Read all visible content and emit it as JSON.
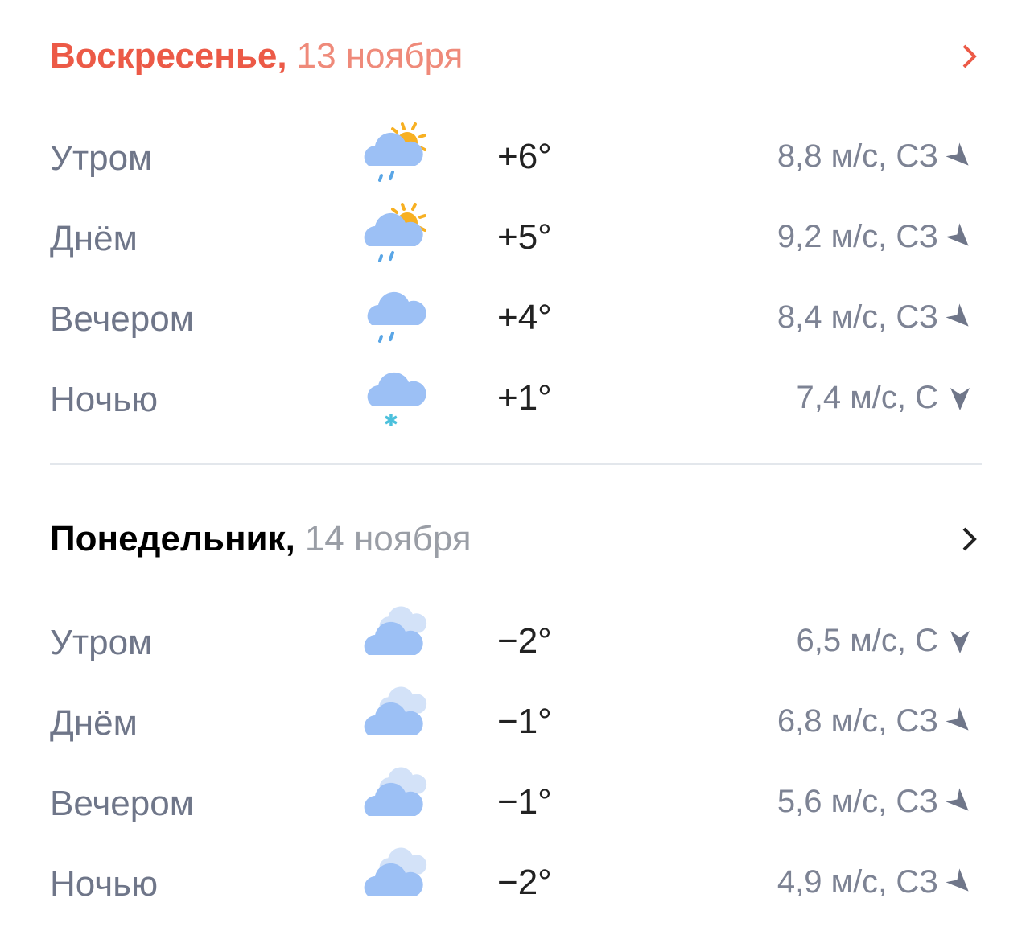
{
  "days": [
    {
      "day": "Воскресенье,",
      "date": "13 ноября",
      "today": true,
      "rows": [
        {
          "label": "Утром",
          "icon": "partly-cloudy-rain-icon",
          "temp": "+6°",
          "wind": "8,8 м/с, СЗ",
          "dir": "nw"
        },
        {
          "label": "Днём",
          "icon": "partly-cloudy-rain-icon",
          "temp": "+5°",
          "wind": "9,2 м/с, СЗ",
          "dir": "nw"
        },
        {
          "label": "Вечером",
          "icon": "cloud-rain-icon",
          "temp": "+4°",
          "wind": "8,4 м/с, СЗ",
          "dir": "nw"
        },
        {
          "label": "Ночью",
          "icon": "cloud-snow-icon",
          "temp": "+1°",
          "wind": "7,4 м/с, С",
          "dir": "n"
        }
      ]
    },
    {
      "day": "Понедельник,",
      "date": "14 ноября",
      "today": false,
      "rows": [
        {
          "label": "Утром",
          "icon": "overcast-icon",
          "temp": "−2°",
          "wind": "6,5 м/с, С",
          "dir": "n"
        },
        {
          "label": "Днём",
          "icon": "overcast-icon",
          "temp": "−1°",
          "wind": "6,8 м/с, СЗ",
          "dir": "nw"
        },
        {
          "label": "Вечером",
          "icon": "overcast-icon",
          "temp": "−1°",
          "wind": "5,6 м/с, СЗ",
          "dir": "nw"
        },
        {
          "label": "Ночью",
          "icon": "overcast-icon",
          "temp": "−2°",
          "wind": "4,9 м/с, СЗ",
          "dir": "nw"
        }
      ]
    }
  ],
  "colors": {
    "today": "#ec5a47",
    "label": "#6f7689",
    "cloud": "#9cc0f5",
    "sun": "#f7b022",
    "rain": "#5aa6e6",
    "snow": "#4bc0dc"
  }
}
